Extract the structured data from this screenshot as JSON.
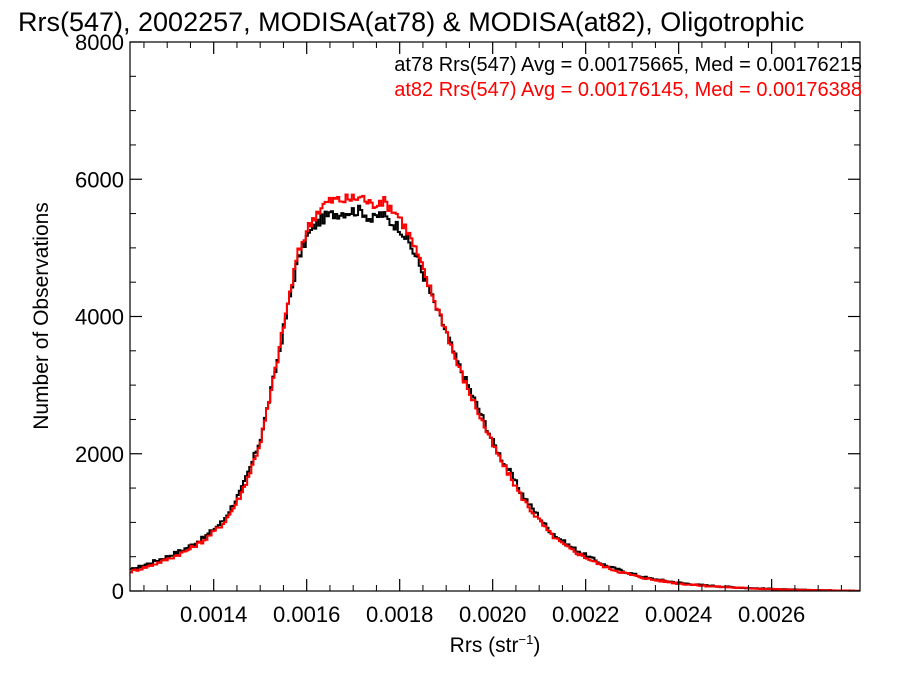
{
  "chart_data": {
    "type": "line",
    "title": "Rrs(547), 2002257, MODISA(at78) & MODISA(at82), Oligotrophic",
    "xlabel_base": "Rrs (str",
    "xlabel_sup": "−1",
    "xlabel_close": ")",
    "ylabel": "Number of Observations",
    "xlim": [
      0.00122,
      0.00279
    ],
    "ylim": [
      0,
      8000
    ],
    "xticks": [
      0.0014,
      0.0016,
      0.0018,
      0.002,
      0.0022,
      0.0024,
      0.0026
    ],
    "xtick_labels": [
      "0.0014",
      "0.0016",
      "0.0018",
      "0.0020",
      "0.0022",
      "0.0024",
      "0.0026"
    ],
    "yticks": [
      0,
      2000,
      4000,
      6000,
      8000
    ],
    "ytick_labels": [
      "0",
      "2000",
      "4000",
      "6000",
      "8000"
    ],
    "legend_placement": "top-right",
    "series": [
      {
        "name": "at78",
        "color": "#000000",
        "stat_text": "at78 Rrs(547) Avg = 0.00175665, Med = 0.00176215",
        "x": [
          0.00122,
          0.00126,
          0.0013,
          0.00134,
          0.00138,
          0.00142,
          0.00144,
          0.00146,
          0.00148,
          0.0015,
          0.00152,
          0.00154,
          0.00156,
          0.00158,
          0.0016,
          0.00162,
          0.00164,
          0.00166,
          0.00168,
          0.0017,
          0.00172,
          0.00174,
          0.00176,
          0.00178,
          0.0018,
          0.00182,
          0.00184,
          0.00186,
          0.00188,
          0.0019,
          0.00192,
          0.00194,
          0.00196,
          0.00198,
          0.002,
          0.00202,
          0.00204,
          0.00206,
          0.00208,
          0.0021,
          0.00212,
          0.00214,
          0.00216,
          0.00218,
          0.0022,
          0.00222,
          0.00224,
          0.00226,
          0.00228,
          0.0023,
          0.00232,
          0.00234,
          0.00236,
          0.00238,
          0.0024,
          0.00244,
          0.00248,
          0.00252,
          0.00256,
          0.0026,
          0.00264,
          0.00268,
          0.00272,
          0.00276,
          0.00279
        ],
        "y": [
          300,
          400,
          500,
          620,
          780,
          1020,
          1240,
          1480,
          1820,
          2200,
          2800,
          3450,
          4150,
          4800,
          5150,
          5350,
          5450,
          5500,
          5520,
          5540,
          5540,
          5400,
          5500,
          5380,
          5300,
          5080,
          4800,
          4450,
          4100,
          3780,
          3400,
          3100,
          2800,
          2500,
          2180,
          1920,
          1700,
          1450,
          1250,
          1080,
          900,
          780,
          680,
          600,
          520,
          450,
          380,
          330,
          290,
          250,
          210,
          180,
          160,
          140,
          120,
          90,
          70,
          55,
          40,
          30,
          20,
          15,
          10,
          6,
          4
        ]
      },
      {
        "name": "at82",
        "color": "#ff0000",
        "stat_text": "at82 Rrs(547) Avg = 0.00176145, Med = 0.00176388",
        "x": [
          0.00122,
          0.00126,
          0.0013,
          0.00134,
          0.00138,
          0.00142,
          0.00144,
          0.00146,
          0.00148,
          0.0015,
          0.00152,
          0.00154,
          0.00156,
          0.00158,
          0.0016,
          0.00162,
          0.00164,
          0.00166,
          0.00168,
          0.0017,
          0.00172,
          0.00174,
          0.00176,
          0.00178,
          0.0018,
          0.00182,
          0.00184,
          0.00186,
          0.00188,
          0.0019,
          0.00192,
          0.00194,
          0.00196,
          0.00198,
          0.002,
          0.00202,
          0.00204,
          0.00206,
          0.00208,
          0.0021,
          0.00212,
          0.00214,
          0.00216,
          0.00218,
          0.0022,
          0.00222,
          0.00224,
          0.00226,
          0.00228,
          0.0023,
          0.00232,
          0.00234,
          0.00236,
          0.00238,
          0.0024,
          0.00244,
          0.00248,
          0.00252,
          0.00256,
          0.0026,
          0.00264,
          0.00268,
          0.00272,
          0.00276,
          0.00279
        ],
        "y": [
          280,
          360,
          460,
          580,
          740,
          980,
          1180,
          1420,
          1760,
          2160,
          2780,
          3480,
          4200,
          4880,
          5250,
          5500,
          5650,
          5700,
          5700,
          5720,
          5740,
          5620,
          5700,
          5600,
          5450,
          5200,
          4880,
          4500,
          4150,
          3800,
          3380,
          3050,
          2750,
          2440,
          2130,
          1870,
          1640,
          1400,
          1200,
          1030,
          860,
          740,
          640,
          560,
          490,
          420,
          360,
          310,
          270,
          230,
          200,
          170,
          150,
          130,
          110,
          85,
          65,
          50,
          38,
          28,
          19,
          13,
          9,
          5,
          3
        ]
      }
    ]
  }
}
